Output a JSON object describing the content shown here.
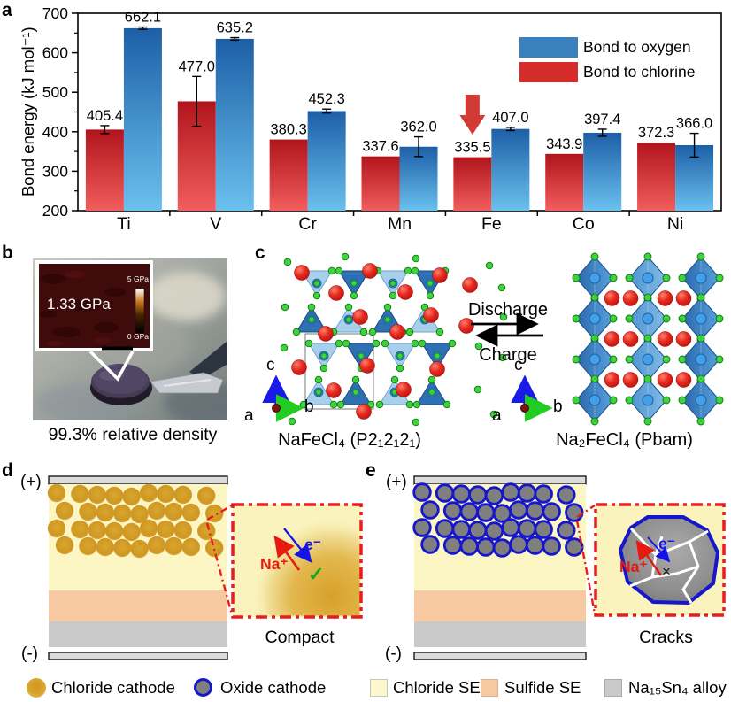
{
  "figure": {
    "panel_labels": {
      "a": "a",
      "b": "b",
      "c": "c",
      "d": "d",
      "e": "e"
    }
  },
  "chart_data": {
    "type": "bar",
    "title": "",
    "categories": [
      "Ti",
      "V",
      "Cr",
      "Mn",
      "Fe",
      "Co",
      "Ni"
    ],
    "series": [
      {
        "name": "Bond to oxygen",
        "values": [
          662.1,
          635.2,
          452.3,
          362.0,
          407.0,
          397.4,
          366.0
        ],
        "errors": [
          3,
          3,
          5,
          25,
          4,
          9,
          30
        ],
        "color": "#3a80bf",
        "gradient": [
          "#1d5fa7",
          "#6ac1ee"
        ]
      },
      {
        "name": "Bond to chlorine",
        "values": [
          405.4,
          477.0,
          380.3,
          337.6,
          335.5,
          343.9,
          372.3
        ],
        "errors": [
          10,
          63,
          0,
          0,
          0,
          0,
          0
        ],
        "color": "#d62b2b",
        "gradient": [
          "#b0151c",
          "#f25d5d"
        ]
      }
    ],
    "ylabel": "Bond energy (kJ mol⁻¹)",
    "xlabel": "",
    "ylim": [
      200,
      700
    ],
    "yticks": [
      200,
      300,
      400,
      500,
      600,
      700
    ],
    "grid": false,
    "legend_position": "top-right",
    "annotation_arrow": {
      "category": "Fe",
      "series": "Bond to chlorine",
      "color": "#d23b35"
    }
  },
  "panel_b": {
    "pressure_label": "1.33 GPa",
    "scale_max": "5 GPa",
    "scale_min": "0 GPa",
    "caption": "99.3% relative density"
  },
  "panel_c": {
    "discharge_label": "Discharge",
    "charge_label": "Charge",
    "left_formula": "NaFeCl₄ (P2₁2₁2₁)",
    "right_formula": "Na₂FeCl₄ (Pbam)",
    "axis_a": "a",
    "axis_b": "b",
    "axis_c": "c"
  },
  "panel_d": {
    "positive": "(+)",
    "negative": "(-)",
    "na_ion": "Na⁺",
    "electron": "e⁻",
    "check_mark": "✓",
    "inset_caption": "Compact"
  },
  "panel_e": {
    "positive": "(+)",
    "negative": "(-)",
    "na_ion": "Na⁺",
    "electron": "e⁻",
    "cross_mark": "×",
    "inset_caption": "Cracks"
  },
  "legend": {
    "items": [
      {
        "label": "Chloride cathode"
      },
      {
        "label": "Oxide cathode"
      },
      {
        "label": "Chloride SE"
      },
      {
        "label": "Sulfide SE"
      },
      {
        "label": "Na₁₅Sn₄ alloy"
      }
    ]
  },
  "colors": {
    "chloride_se": "#fbf6c4",
    "sulfide_se": "#f6c9a2",
    "alloy": "#c9c9c9",
    "cathode_gold": "#d6a02c",
    "oxide_gray": "#7f7f7f",
    "oxide_outline": "#1616cc",
    "inset_border": "#ea1c1c",
    "na_red": "#e8190f",
    "electron_blue": "#1414e8",
    "check_green": "#18a61e"
  }
}
